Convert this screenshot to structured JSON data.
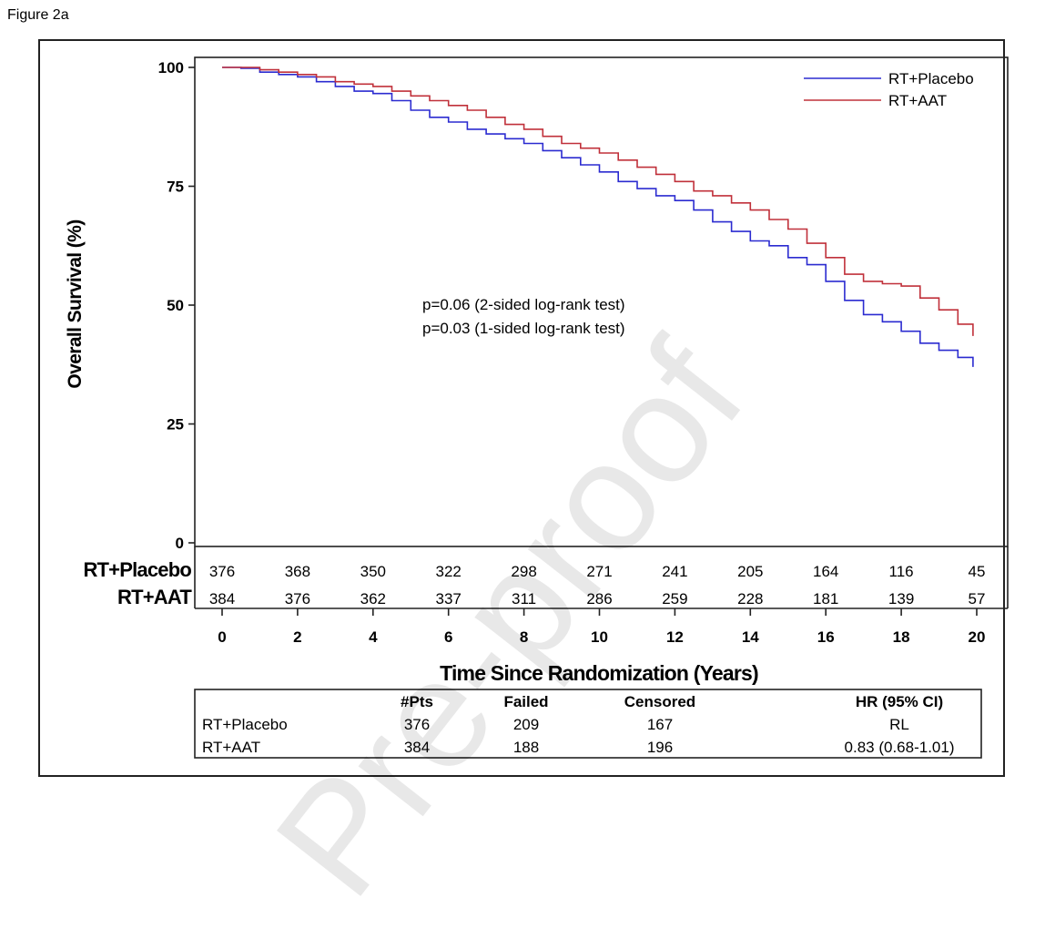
{
  "figure_label": "Figure 2a",
  "watermark": "Pre-proof",
  "annotation": {
    "line1": "p=0.06 (2-sided log-rank test)",
    "line2": "p=0.03 (1-sided log-rank test)"
  },
  "risk_table": {
    "rows": [
      {
        "label": "RT+Placebo",
        "counts": [
          "376",
          "368",
          "350",
          "322",
          "298",
          "271",
          "241",
          "205",
          "164",
          "116",
          "45"
        ]
      },
      {
        "label": "RT+AAT",
        "counts": [
          "384",
          "376",
          "362",
          "337",
          "311",
          "286",
          "259",
          "228",
          "181",
          "139",
          "57"
        ]
      }
    ]
  },
  "summary_table": {
    "headers": [
      "#Pts",
      "Failed",
      "Censored",
      "HR (95% CI)"
    ],
    "rows": [
      {
        "label": "RT+Placebo",
        "pts": "376",
        "failed": "209",
        "censored": "167",
        "hr": "RL"
      },
      {
        "label": "RT+AAT",
        "pts": "384",
        "failed": "188",
        "censored": "196",
        "hr": "0.83 (0.68-1.01)"
      }
    ]
  },
  "chart_data": {
    "type": "line",
    "title": "",
    "xlabel": "Time Since Randomization (Years)",
    "ylabel": "Overall Survival (%)",
    "xlim": [
      0,
      20
    ],
    "ylim": [
      0,
      100
    ],
    "xticks": [
      0,
      2,
      4,
      6,
      8,
      10,
      12,
      14,
      16,
      18,
      20
    ],
    "yticks": [
      0,
      25,
      50,
      75,
      100
    ],
    "legend_position": "top-right",
    "grid": false,
    "series": [
      {
        "name": "RT+Placebo",
        "color": "#2b2bd0",
        "x": [
          0,
          0.5,
          1,
          1.5,
          2,
          2.5,
          3,
          3.5,
          4,
          4.5,
          5,
          5.5,
          6,
          6.5,
          7,
          7.5,
          8,
          8.5,
          9,
          9.5,
          10,
          10.5,
          11,
          11.5,
          12,
          12.5,
          13,
          13.5,
          14,
          14.5,
          15,
          15.5,
          16,
          16.5,
          17,
          17.5,
          18,
          18.5,
          19,
          19.5,
          19.9
        ],
        "y": [
          100,
          99.8,
          99,
          98.5,
          98,
          97,
          96,
          95,
          94.5,
          93,
          91,
          89.5,
          88.5,
          87,
          86,
          85,
          84,
          82.5,
          81,
          79.5,
          78,
          76,
          74.5,
          73,
          72,
          70,
          67.5,
          65.5,
          63.5,
          62.5,
          60,
          58.5,
          55,
          51,
          48,
          46.5,
          44.5,
          42,
          40.5,
          39,
          37
        ]
      },
      {
        "name": "RT+AAT",
        "color": "#c0303a",
        "x": [
          0,
          0.5,
          1,
          1.5,
          2,
          2.5,
          3,
          3.5,
          4,
          4.5,
          5,
          5.5,
          6,
          6.5,
          7,
          7.5,
          8,
          8.5,
          9,
          9.5,
          10,
          10.5,
          11,
          11.5,
          12,
          12.5,
          13,
          13.5,
          14,
          14.5,
          15,
          15.5,
          16,
          16.5,
          17,
          17.5,
          18,
          18.5,
          19,
          19.5,
          19.9
        ],
        "y": [
          100,
          100,
          99.5,
          99,
          98.5,
          98,
          97,
          96.5,
          96,
          95,
          94,
          93,
          92,
          91,
          89.5,
          88,
          87,
          85.5,
          84,
          83,
          82,
          80.5,
          79,
          77.5,
          76,
          74,
          73,
          71.5,
          70,
          68,
          66,
          63,
          60,
          56.5,
          55,
          54.5,
          54,
          51.5,
          49,
          46,
          43.5
        ]
      }
    ]
  }
}
